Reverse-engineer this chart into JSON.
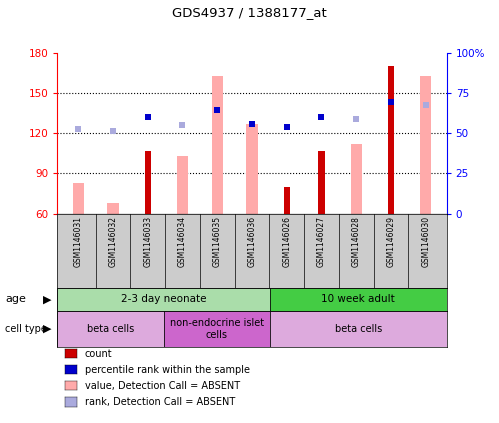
{
  "title": "GDS4937 / 1388177_at",
  "samples": [
    "GSM1146031",
    "GSM1146032",
    "GSM1146033",
    "GSM1146034",
    "GSM1146035",
    "GSM1146036",
    "GSM1146026",
    "GSM1146027",
    "GSM1146028",
    "GSM1146029",
    "GSM1146030"
  ],
  "count_values": [
    null,
    null,
    107,
    null,
    null,
    null,
    80,
    107,
    null,
    170,
    null
  ],
  "count_absent_values": [
    83,
    68,
    null,
    103,
    163,
    127,
    null,
    null,
    112,
    null,
    163
  ],
  "rank_values": [
    null,
    null,
    132,
    null,
    137,
    127,
    125,
    132,
    null,
    143,
    null
  ],
  "rank_absent_values": [
    123,
    122,
    null,
    126,
    137,
    null,
    null,
    null,
    131,
    143,
    141
  ],
  "ylim_left": [
    60,
    180
  ],
  "ylim_right": [
    0,
    100
  ],
  "yticks_left": [
    60,
    90,
    120,
    150,
    180
  ],
  "yticks_right": [
    0,
    25,
    50,
    75,
    100
  ],
  "ytick_labels_left": [
    "60",
    "90",
    "120",
    "150",
    "180"
  ],
  "ytick_labels_right": [
    "0",
    "25",
    "50",
    "75",
    "100%"
  ],
  "hgrid_values": [
    90,
    120,
    150
  ],
  "age_groups": [
    {
      "label": "2-3 day neonate",
      "start": 0,
      "end": 6,
      "color": "#aaddaa"
    },
    {
      "label": "10 week adult",
      "start": 6,
      "end": 11,
      "color": "#44cc44"
    }
  ],
  "cell_type_groups": [
    {
      "label": "beta cells",
      "start": 0,
      "end": 3,
      "color": "#ddaadd"
    },
    {
      "label": "non-endocrine islet\ncells",
      "start": 3,
      "end": 6,
      "color": "#cc66cc"
    },
    {
      "label": "beta cells",
      "start": 6,
      "end": 11,
      "color": "#ddaadd"
    }
  ],
  "colors": {
    "count": "#cc0000",
    "rank": "#0000cc",
    "count_absent": "#ffaaaa",
    "rank_absent": "#aaaadd",
    "bg_sample": "#cccccc"
  },
  "legend_items": [
    {
      "label": "count",
      "color": "#cc0000"
    },
    {
      "label": "percentile rank within the sample",
      "color": "#0000cc"
    },
    {
      "label": "value, Detection Call = ABSENT",
      "color": "#ffaaaa"
    },
    {
      "label": "rank, Detection Call = ABSENT",
      "color": "#aaaadd"
    }
  ]
}
